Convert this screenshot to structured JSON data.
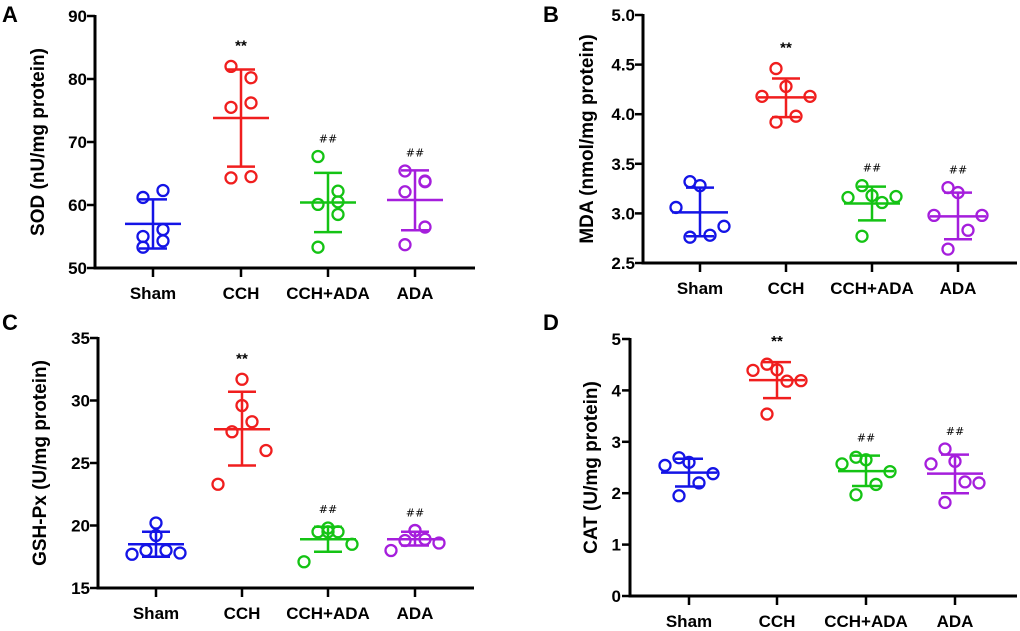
{
  "figure": {
    "colors": {
      "Sham": "#1414e6",
      "CCH": "#f01e1e",
      "CCH+ADA": "#14c314",
      "ADA": "#a51edc",
      "axis": "#000000"
    }
  },
  "chart_data": [
    {
      "panel": "A",
      "type": "scatter",
      "title": "",
      "xlabel": "",
      "ylabel": "SOD (nU/mg protein)",
      "categories": [
        "Sham",
        "CCH",
        "CCH+ADA",
        "ADA"
      ],
      "ylim": [
        50,
        90
      ],
      "yticks": [
        50,
        60,
        70,
        80,
        90
      ],
      "ytick_labels": [
        "50",
        "60",
        "70",
        "80",
        "90"
      ],
      "grid": false,
      "legend": "none",
      "series": [
        {
          "name": "Sham",
          "values": [
            61.2,
            62.3,
            56.1,
            55.0,
            54.3,
            53.3
          ],
          "mean": 57.0,
          "sd_upper": 60.9,
          "sd_lower": 53.1,
          "annotation": ""
        },
        {
          "name": "CCH",
          "values": [
            82.0,
            80.2,
            76.2,
            75.5,
            64.5,
            64.3
          ],
          "mean": 73.8,
          "sd_upper": 81.5,
          "sd_lower": 66.1,
          "annotation": "**"
        },
        {
          "name": "CCH+ADA",
          "values": [
            67.7,
            62.2,
            60.5,
            60.1,
            58.5,
            53.3
          ],
          "mean": 60.4,
          "sd_upper": 65.1,
          "sd_lower": 55.7,
          "annotation": "##"
        },
        {
          "name": "ADA",
          "values": [
            65.4,
            63.8,
            63.7,
            62.1,
            56.5,
            53.7
          ],
          "mean": 60.8,
          "sd_upper": 65.5,
          "sd_lower": 56.0,
          "annotation": "##"
        }
      ]
    },
    {
      "panel": "B",
      "type": "scatter",
      "title": "",
      "xlabel": "",
      "ylabel": "MDA (nmol/mg protein)",
      "categories": [
        "Sham",
        "CCH",
        "CCH+ADA",
        "ADA"
      ],
      "ylim": [
        2.5,
        5.0
      ],
      "yticks": [
        2.5,
        3.0,
        3.5,
        4.0,
        4.5,
        5.0
      ],
      "ytick_labels": [
        "2.5",
        "3.0",
        "3.5",
        "4.0",
        "4.5",
        "5.0"
      ],
      "grid": false,
      "legend": "none",
      "series": [
        {
          "name": "Sham",
          "values": [
            3.32,
            3.28,
            3.06,
            2.87,
            2.78,
            2.76
          ],
          "mean": 3.01,
          "sd_upper": 3.26,
          "sd_lower": 2.77,
          "annotation": ""
        },
        {
          "name": "CCH",
          "values": [
            4.46,
            4.28,
            4.18,
            4.18,
            3.98,
            3.92
          ],
          "mean": 4.17,
          "sd_upper": 4.36,
          "sd_lower": 3.97,
          "annotation": "**"
        },
        {
          "name": "CCH+ADA",
          "values": [
            3.28,
            3.18,
            3.16,
            3.17,
            3.11,
            2.77
          ],
          "mean": 3.1,
          "sd_upper": 3.27,
          "sd_lower": 2.93,
          "annotation": "##"
        },
        {
          "name": "ADA",
          "values": [
            3.26,
            3.21,
            2.98,
            2.98,
            2.83,
            2.64
          ],
          "mean": 2.97,
          "sd_upper": 3.21,
          "sd_lower": 2.74,
          "annotation": "##"
        }
      ]
    },
    {
      "panel": "C",
      "type": "scatter",
      "title": "",
      "xlabel": "",
      "ylabel": "GSH-Px (U/mg protein)",
      "categories": [
        "Sham",
        "CCH",
        "CCH+ADA",
        "ADA"
      ],
      "ylim": [
        15,
        35
      ],
      "yticks": [
        15,
        20,
        25,
        30,
        35
      ],
      "ytick_labels": [
        "15",
        "20",
        "25",
        "30",
        "35"
      ],
      "grid": false,
      "legend": "none",
      "series": [
        {
          "name": "Sham",
          "values": [
            20.2,
            19.2,
            18.0,
            18.0,
            17.8,
            17.7
          ],
          "mean": 18.5,
          "sd_upper": 19.5,
          "sd_lower": 17.5,
          "annotation": ""
        },
        {
          "name": "CCH",
          "values": [
            31.7,
            29.6,
            28.3,
            27.5,
            26.0,
            23.3
          ],
          "mean": 27.7,
          "sd_upper": 30.7,
          "sd_lower": 24.8,
          "annotation": "**"
        },
        {
          "name": "CCH+ADA",
          "values": [
            19.8,
            19.5,
            19.5,
            19.5,
            18.5,
            17.1
          ],
          "mean": 18.9,
          "sd_upper": 19.9,
          "sd_lower": 17.9,
          "annotation": "##"
        },
        {
          "name": "ADA",
          "values": [
            19.6,
            19.6,
            18.9,
            18.8,
            18.6,
            18.0
          ],
          "mean": 18.9,
          "sd_upper": 19.5,
          "sd_lower": 18.4,
          "annotation": "##"
        }
      ]
    },
    {
      "panel": "D",
      "type": "scatter",
      "title": "",
      "xlabel": "",
      "ylabel": "CAT (U/mg protein)",
      "categories": [
        "Sham",
        "CCH",
        "CCH+ADA",
        "ADA"
      ],
      "ylim": [
        0,
        5
      ],
      "yticks": [
        0,
        1,
        2,
        3,
        4,
        5
      ],
      "ytick_labels": [
        "0",
        "1",
        "2",
        "3",
        "4",
        "5"
      ],
      "grid": false,
      "legend": "none",
      "series": [
        {
          "name": "Sham",
          "values": [
            2.69,
            2.6,
            2.54,
            2.38,
            2.2,
            1.95
          ],
          "mean": 2.4,
          "sd_upper": 2.67,
          "sd_lower": 2.13,
          "annotation": ""
        },
        {
          "name": "CCH",
          "values": [
            4.51,
            4.4,
            4.39,
            4.19,
            4.18,
            3.54
          ],
          "mean": 4.2,
          "sd_upper": 4.55,
          "sd_lower": 3.85,
          "annotation": "**"
        },
        {
          "name": "CCH+ADA",
          "values": [
            2.7,
            2.65,
            2.57,
            2.42,
            2.17,
            1.97
          ],
          "mean": 2.43,
          "sd_upper": 2.73,
          "sd_lower": 2.14,
          "annotation": "##"
        },
        {
          "name": "ADA",
          "values": [
            2.86,
            2.62,
            2.57,
            2.2,
            2.22,
            1.82
          ],
          "mean": 2.38,
          "sd_upper": 2.75,
          "sd_lower": 2.0,
          "annotation": "##"
        }
      ]
    }
  ]
}
